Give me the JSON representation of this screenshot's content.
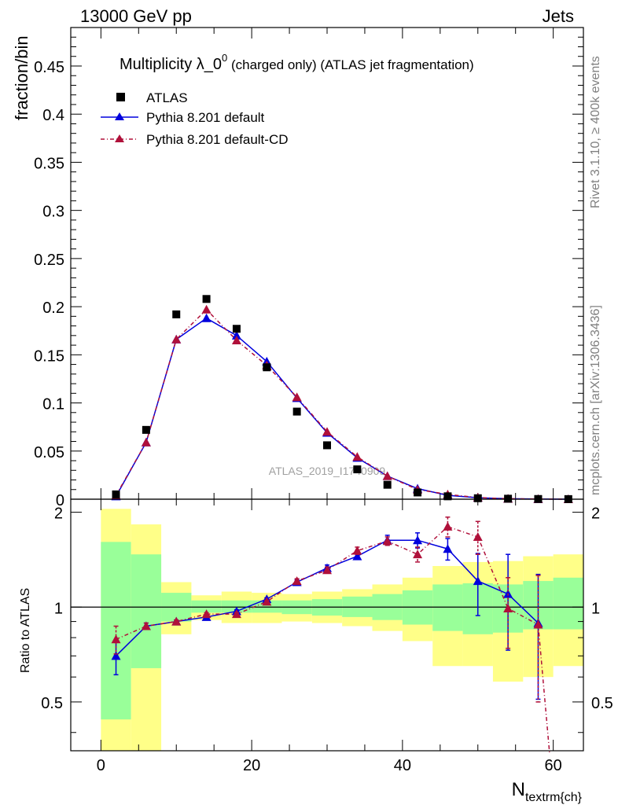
{
  "header": {
    "left": "13000 GeV pp",
    "right": "Jets"
  },
  "side_labels": {
    "rivet": "Rivet 3.1.10, ≥ 400k events",
    "mcplots": "mcplots.cern.ch [arXiv:1306.3436]"
  },
  "chart_data": {
    "type": "line",
    "title_main": "Multiplicity λ_0",
    "title_sup": "0",
    "title_rest": " (charged only) (ATLAS jet fragmentation)",
    "watermark": "ATLAS_2019_I1740909",
    "xlabel_main": "N",
    "xlabel_sub": "textrm{ch}",
    "ylabel": "fraction/bin",
    "ratio_ylabel": "Ratio to ATLAS",
    "xlim": [
      -4,
      64
    ],
    "ylim": [
      0,
      0.49
    ],
    "ratio_ylim": [
      0.35,
      2.2
    ],
    "x_ticks": [
      "0",
      "20",
      "40",
      "60"
    ],
    "y_ticks": [
      "0",
      "0.05",
      "0.1",
      "0.15",
      "0.2",
      "0.25",
      "0.3",
      "0.35",
      "0.4",
      "0.45"
    ],
    "ratio_ticks": [
      "0.5",
      "1",
      "2"
    ],
    "colors": {
      "atlas": "#000000",
      "default": "#0000dd",
      "cd": "#b0103a",
      "band_inner": "#99ff99",
      "band_outer": "#ffff88"
    },
    "bins": [
      [
        0,
        4
      ],
      [
        4,
        8
      ],
      [
        8,
        12
      ],
      [
        12,
        16
      ],
      [
        16,
        20
      ],
      [
        20,
        24
      ],
      [
        24,
        28
      ],
      [
        28,
        32
      ],
      [
        32,
        36
      ],
      [
        36,
        40
      ],
      [
        40,
        44
      ],
      [
        44,
        48
      ],
      [
        48,
        52
      ],
      [
        52,
        56
      ],
      [
        56,
        60
      ],
      [
        60,
        64
      ]
    ],
    "x": [
      2,
      6,
      10,
      14,
      18,
      22,
      26,
      30,
      34,
      38,
      42,
      46,
      50,
      54,
      58,
      62
    ],
    "legend": [
      "ATLAS",
      "Pythia 8.201 default",
      "Pythia 8.201 default-CD"
    ],
    "series": [
      {
        "name": "ATLAS",
        "values": [
          0.005,
          0.072,
          0.192,
          0.208,
          0.177,
          0.137,
          0.091,
          0.056,
          0.031,
          0.015,
          0.007,
          0.003,
          0.001,
          0.0005,
          0.0002,
          0.0001
        ]
      },
      {
        "name": "Pythia 8.201 default",
        "values": [
          0.003,
          0.059,
          0.166,
          0.188,
          0.17,
          0.143,
          0.105,
          0.069,
          0.043,
          0.024,
          0.011,
          0.004,
          0.0015,
          0.0005,
          0.0002,
          0.0
        ]
      },
      {
        "name": "Pythia 8.201 default-CD",
        "values": [
          0.004,
          0.059,
          0.166,
          0.197,
          0.165,
          0.139,
          0.106,
          0.07,
          0.044,
          0.024,
          0.01,
          0.005,
          0.0017,
          0.0005,
          0.0002,
          0.0
        ]
      }
    ],
    "ratio_series": [
      {
        "name": "Pythia 8.201 default",
        "x": [
          2,
          6,
          10,
          14,
          18,
          22,
          26,
          30,
          34,
          38,
          42,
          46,
          50,
          54,
          58
        ],
        "values": [
          0.7,
          0.87,
          0.9,
          0.93,
          0.97,
          1.06,
          1.2,
          1.33,
          1.45,
          1.63,
          1.63,
          1.53,
          1.21,
          1.1,
          0.89
        ],
        "err": [
          0.09,
          0.02,
          0.01,
          0.01,
          0.01,
          0.01,
          0.02,
          0.03,
          0.03,
          0.06,
          0.09,
          0.12,
          0.27,
          0.37,
          0.38
        ]
      },
      {
        "name": "Pythia 8.201 default-CD",
        "x": [
          2,
          6,
          10,
          14,
          18,
          22,
          26,
          30,
          34,
          38,
          42,
          46,
          50,
          54,
          58,
          59.5
        ],
        "values": [
          0.79,
          0.87,
          0.9,
          0.95,
          0.95,
          1.04,
          1.21,
          1.31,
          1.51,
          1.62,
          1.47,
          1.8,
          1.67,
          0.99,
          0.88,
          0.3
        ],
        "err": [
          0.08,
          0.02,
          0.01,
          0.01,
          0.01,
          0.01,
          0.02,
          0.03,
          0.04,
          0.05,
          0.08,
          0.13,
          0.2,
          0.25,
          0.38,
          0.0
        ]
      }
    ],
    "bands": {
      "inner": [
        [
          0.44,
          1.61
        ],
        [
          0.64,
          1.47
        ],
        [
          0.9,
          1.11
        ],
        [
          0.96,
          1.05
        ],
        [
          0.96,
          1.05
        ],
        [
          0.96,
          1.05
        ],
        [
          0.95,
          1.05
        ],
        [
          0.94,
          1.06
        ],
        [
          0.93,
          1.08
        ],
        [
          0.91,
          1.1
        ],
        [
          0.88,
          1.13
        ],
        [
          0.84,
          1.18
        ],
        [
          0.82,
          1.19
        ],
        [
          0.83,
          1.18
        ],
        [
          0.85,
          1.21
        ],
        [
          0.85,
          1.24
        ]
      ],
      "outer": [
        [
          0.35,
          2.05
        ],
        [
          0.35,
          1.83
        ],
        [
          0.82,
          1.2
        ],
        [
          0.91,
          1.09
        ],
        [
          0.89,
          1.12
        ],
        [
          0.89,
          1.11
        ],
        [
          0.9,
          1.1
        ],
        [
          0.89,
          1.12
        ],
        [
          0.87,
          1.14
        ],
        [
          0.84,
          1.18
        ],
        [
          0.78,
          1.24
        ],
        [
          0.65,
          1.35
        ],
        [
          0.65,
          1.39
        ],
        [
          0.58,
          1.4
        ],
        [
          0.6,
          1.45
        ],
        [
          0.65,
          1.47
        ]
      ]
    }
  }
}
